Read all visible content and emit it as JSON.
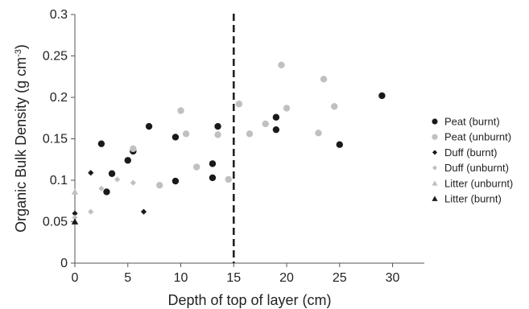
{
  "chart_data": {
    "type": "scatter",
    "xlabel": "Depth of top of layer (cm)",
    "ylabel": "Organic Bulk Density (g cm",
    "ylabel_sup": "-3",
    "ylabel_close": ")",
    "xlim": [
      0,
      33
    ],
    "ylim": [
      0,
      0.3
    ],
    "x_ticks": [
      0,
      5,
      10,
      15,
      20,
      25,
      30
    ],
    "y_ticks": [
      0,
      0.05,
      0.1,
      0.15,
      0.2,
      0.25,
      0.3
    ],
    "x_tick_labels": [
      "0",
      "5",
      "10",
      "15",
      "20",
      "25",
      "30"
    ],
    "y_tick_labels": [
      "0",
      "0.05",
      "0.1",
      "0.15",
      "0.2",
      "0.25",
      "0.3"
    ],
    "grid": false,
    "legend_position": "right",
    "vertical_reference_line": {
      "x": 15,
      "style": "dashed",
      "color": "#222222"
    },
    "series": [
      {
        "name": "Peat (burnt)",
        "marker": "circle",
        "color": "#1a1a1a",
        "points": [
          [
            2.5,
            0.144
          ],
          [
            3,
            0.086
          ],
          [
            3.5,
            0.108
          ],
          [
            5,
            0.124
          ],
          [
            5.5,
            0.135
          ],
          [
            7,
            0.165
          ],
          [
            9.5,
            0.152
          ],
          [
            9.5,
            0.099
          ],
          [
            13,
            0.103
          ],
          [
            13,
            0.12
          ],
          [
            13.5,
            0.165
          ],
          [
            19,
            0.176
          ],
          [
            19,
            0.161
          ],
          [
            25,
            0.143
          ],
          [
            29,
            0.202
          ]
        ]
      },
      {
        "name": "Peat (unburnt)",
        "marker": "circle",
        "color": "#c0c0c0",
        "points": [
          [
            5.5,
            0.138
          ],
          [
            8,
            0.094
          ],
          [
            10,
            0.184
          ],
          [
            10.5,
            0.156
          ],
          [
            11.5,
            0.116
          ],
          [
            13.5,
            0.155
          ],
          [
            14.5,
            0.101
          ],
          [
            15.5,
            0.192
          ],
          [
            16.5,
            0.156
          ],
          [
            18,
            0.168
          ],
          [
            19.5,
            0.239
          ],
          [
            20,
            0.187
          ],
          [
            23,
            0.157
          ],
          [
            23.5,
            0.222
          ],
          [
            24.5,
            0.189
          ]
        ]
      },
      {
        "name": "Duff (burnt)",
        "marker": "diamond",
        "color": "#1a1a1a",
        "points": [
          [
            0,
            0.06
          ],
          [
            1.5,
            0.109
          ],
          [
            6.5,
            0.062
          ]
        ]
      },
      {
        "name": "Duff (unburnt)",
        "marker": "diamond",
        "color": "#c0c0c0",
        "points": [
          [
            0,
            0.055
          ],
          [
            1.5,
            0.062
          ],
          [
            2.5,
            0.09
          ],
          [
            4,
            0.101
          ],
          [
            5.5,
            0.097
          ]
        ]
      },
      {
        "name": "Litter (unburnt)",
        "marker": "triangle",
        "color": "#c0c0c0",
        "points": [
          [
            0,
            0.086
          ]
        ]
      },
      {
        "name": "Litter (burnt)",
        "marker": "triangle",
        "color": "#1a1a1a",
        "points": [
          [
            0,
            0.05
          ]
        ]
      }
    ]
  }
}
